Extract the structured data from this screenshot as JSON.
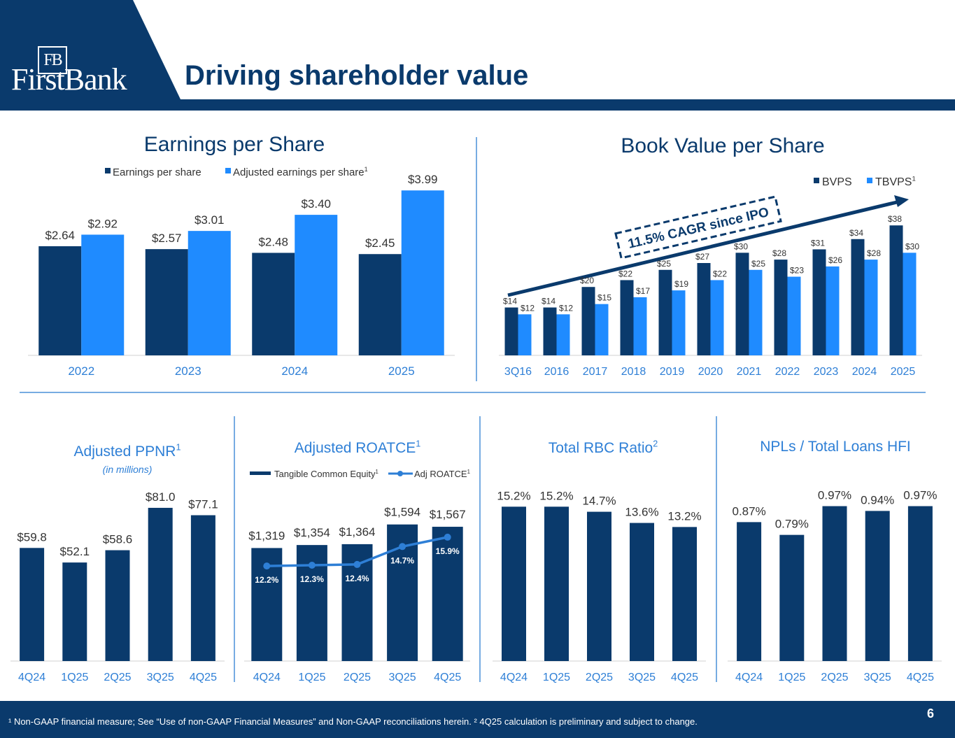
{
  "page": {
    "title": "Driving shareholder value",
    "logo_monogram": "FB",
    "logo_wordmark": "FirstBank",
    "footnote": "¹ Non-GAAP financial measure; See “Use of non-GAAP Financial Measures” and Non-GAAP reconciliations herein. ² 4Q25 calculation is preliminary and subject to change.",
    "page_number": "6",
    "colors": {
      "navy": "#0a3a6c",
      "bright_blue": "#1f8bff",
      "axis_blue": "#2e7fd6",
      "divider": "#4a90d9"
    }
  },
  "chart_data": [
    {
      "id": "eps",
      "type": "bar",
      "title": "Earnings per Share",
      "categories": [
        "2022",
        "2023",
        "2024",
        "2025"
      ],
      "series": [
        {
          "name": "Earnings per share",
          "values": [
            2.64,
            2.57,
            2.48,
            2.45
          ],
          "labels": [
            "$2.64",
            "$2.57",
            "$2.48",
            "$2.45"
          ]
        },
        {
          "name": "Adjusted earnings per share",
          "name_sup": "1",
          "values": [
            2.92,
            3.01,
            3.4,
            3.99
          ],
          "labels": [
            "$2.92",
            "$3.01",
            "$3.40",
            "$3.99"
          ]
        }
      ],
      "ylim": [
        0,
        4.4
      ],
      "legend": "top-center",
      "grid": false
    },
    {
      "id": "bvps",
      "type": "bar",
      "title": "Book Value per Share",
      "categories": [
        "3Q16",
        "2016",
        "2017",
        "2018",
        "2019",
        "2020",
        "2021",
        "2022",
        "2023",
        "2024",
        "2025"
      ],
      "series": [
        {
          "name": "BVPS",
          "values": [
            14,
            14,
            20,
            22,
            25,
            27,
            30,
            28,
            31,
            34,
            38
          ],
          "labels": [
            "$14",
            "$14",
            "$20",
            "$22",
            "$25",
            "$27",
            "$30",
            "$28",
            "$31",
            "$34",
            "$38"
          ]
        },
        {
          "name": "TBVPS",
          "name_sup": "1",
          "values": [
            12,
            12,
            15,
            17,
            19,
            22,
            25,
            23,
            26,
            28,
            30
          ],
          "labels": [
            "$12",
            "$12",
            "$15",
            "$17",
            "$19",
            "$22",
            "$25",
            "$23",
            "$26",
            "$28",
            "$30"
          ]
        }
      ],
      "annotation": "11.5% CAGR since IPO",
      "ylim": [
        0,
        45
      ],
      "legend": "top-right",
      "grid": false
    },
    {
      "id": "ppnr",
      "type": "bar",
      "title": "Adjusted PPNR",
      "title_sup": "1",
      "subtitle": "(in millions)",
      "categories": [
        "4Q24",
        "1Q25",
        "2Q25",
        "3Q25",
        "4Q25"
      ],
      "values": [
        59.8,
        52.1,
        58.6,
        81.0,
        77.1
      ],
      "labels": [
        "$59.8",
        "$52.1",
        "$58.6",
        "$81.0",
        "$77.1"
      ],
      "ylim": [
        0,
        98
      ]
    },
    {
      "id": "roatce",
      "type": "bar",
      "title": "Adjusted ROATCE",
      "title_sup": "1",
      "categories": [
        "4Q24",
        "1Q25",
        "2Q25",
        "3Q25",
        "4Q25"
      ],
      "series": [
        {
          "name": "Tangible Common Equity",
          "name_sup": "1",
          "kind": "bar",
          "values": [
            1319,
            1354,
            1364,
            1594,
            1567
          ],
          "labels": [
            "$1,319",
            "$1,354",
            "$1,364",
            "$1,594",
            "$1,567"
          ]
        },
        {
          "name": "Adj ROATCE",
          "name_sup": "1",
          "kind": "line",
          "values": [
            12.2,
            12.3,
            12.4,
            14.7,
            15.9
          ],
          "labels": [
            "12.2%",
            "12.3%",
            "12.4%",
            "14.7%",
            "15.9%"
          ]
        }
      ],
      "ylim": [
        0,
        2000
      ],
      "y2lim": [
        0,
        22
      ],
      "legend": "top-center"
    },
    {
      "id": "rbc",
      "type": "bar",
      "title": "Total RBC Ratio",
      "title_sup": "2",
      "categories": [
        "4Q24",
        "1Q25",
        "2Q25",
        "3Q25",
        "4Q25"
      ],
      "values": [
        15.2,
        15.2,
        14.7,
        13.6,
        13.2
      ],
      "labels": [
        "15.2%",
        "15.2%",
        "14.7%",
        "13.6%",
        "13.2%"
      ],
      "ylim": [
        0,
        16.6
      ]
    },
    {
      "id": "npl",
      "type": "bar",
      "title": "NPLs / Total Loans HFI",
      "categories": [
        "4Q24",
        "1Q25",
        "2Q25",
        "3Q25",
        "4Q25"
      ],
      "values": [
        0.87,
        0.79,
        0.97,
        0.94,
        0.97
      ],
      "labels": [
        "0.87%",
        "0.79%",
        "0.97%",
        "0.94%",
        "0.97%"
      ],
      "ylim": [
        0,
        1.06
      ]
    }
  ]
}
